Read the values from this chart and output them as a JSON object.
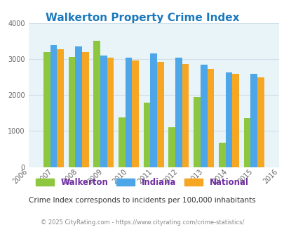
{
  "title": "Walkerton Property Crime Index",
  "bar_years": [
    2007,
    2008,
    2009,
    2010,
    2011,
    2012,
    2013,
    2014,
    2015
  ],
  "walkerton": [
    3190,
    3070,
    3520,
    1390,
    1790,
    1100,
    1950,
    670,
    1360
  ],
  "indiana": [
    3390,
    3360,
    3100,
    3040,
    3160,
    3040,
    2850,
    2640,
    2590
  ],
  "national": [
    3280,
    3200,
    3040,
    2960,
    2920,
    2860,
    2720,
    2600,
    2500
  ],
  "walkerton_color": "#8dc63f",
  "indiana_color": "#4da6e8",
  "national_color": "#f5a623",
  "bg_color": "#e8f4f8",
  "ylim": [
    0,
    4000
  ],
  "yticks": [
    0,
    1000,
    2000,
    3000,
    4000
  ],
  "xlim": [
    2006,
    2016
  ],
  "xticks": [
    2006,
    2007,
    2008,
    2009,
    2010,
    2011,
    2012,
    2013,
    2014,
    2015,
    2016
  ],
  "xlabel_note": "Crime Index corresponds to incidents per 100,000 inhabitants",
  "footer": "© 2025 CityRating.com - https://www.cityrating.com/crime-statistics/",
  "legend_labels": [
    "Walkerton",
    "Indiana",
    "National"
  ],
  "title_color": "#1a7abd",
  "legend_text_color": "#7030a0",
  "note_color": "#333333",
  "footer_color": "#888888",
  "bar_width": 0.27,
  "grid_color": "#d0e0e8"
}
